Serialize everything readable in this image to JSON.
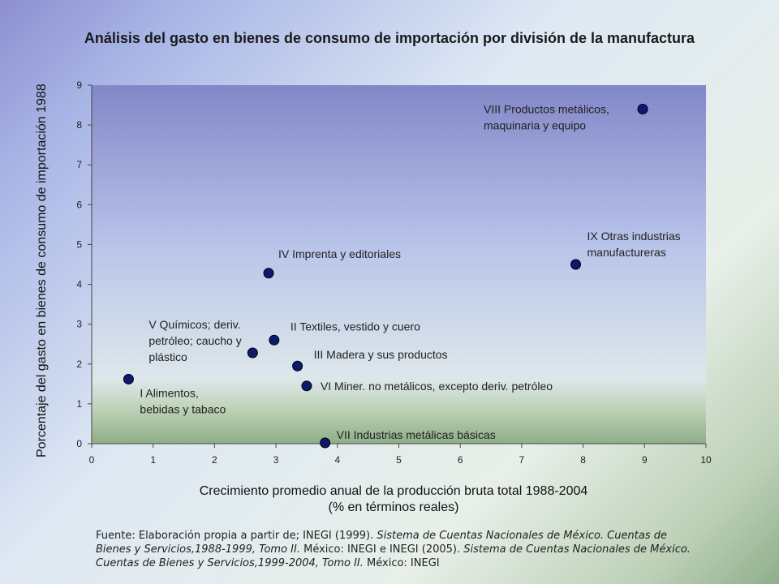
{
  "chart_data": {
    "type": "scatter",
    "title": "Análisis del gasto en bienes de consumo de importación por división de la manufactura",
    "xlabel_line1": "Crecimiento promedio anual de la producción bruta total 1988-2004",
    "xlabel_line2": "(% en términos reales)",
    "ylabel": "Porcentaje del gasto en bienes de consumo de importación 1988",
    "xlim": [
      0,
      10
    ],
    "ylim": [
      0,
      9
    ],
    "xticks": [
      "0",
      "1",
      "2",
      "3",
      "4",
      "5",
      "6",
      "7",
      "8",
      "9",
      "10"
    ],
    "yticks": [
      "0",
      "1",
      "2",
      "3",
      "4",
      "5",
      "6",
      "7",
      "8",
      "9"
    ],
    "grid": false,
    "legend": "none",
    "marker_color": "#0b1a6e",
    "points": [
      {
        "x": 0.6,
        "y": 1.62,
        "label": [
          "I Alimentos,",
          "bebidas y tabaco"
        ]
      },
      {
        "x": 2.97,
        "y": 2.6,
        "label": [
          "II Textiles, vestido y cuero"
        ]
      },
      {
        "x": 3.35,
        "y": 1.95,
        "label": [
          "III Madera y sus productos"
        ]
      },
      {
        "x": 2.88,
        "y": 4.28,
        "label": [
          "IV Imprenta y editoriales"
        ]
      },
      {
        "x": 2.62,
        "y": 2.28,
        "label": [
          "V Químicos; deriv.",
          "petróleo; caucho y",
          "plástico"
        ]
      },
      {
        "x": 3.5,
        "y": 1.45,
        "label": [
          "VI Miner. no metálicos, excepto deriv. petróleo"
        ]
      },
      {
        "x": 3.8,
        "y": 0.02,
        "label": [
          "VII Industrias metálicas básicas"
        ]
      },
      {
        "x": 8.97,
        "y": 8.4,
        "label": [
          "VIII Productos metálicos,",
          "maquinaria y equipo"
        ]
      },
      {
        "x": 7.88,
        "y": 4.5,
        "label": [
          "IX Otras industrias",
          "manufactureras"
        ]
      }
    ]
  },
  "source": {
    "intro": "Fuente: Elaboración propia a partir de; INEGI (1999). ",
    "title1": "Sistema de Cuentas Nacionales de México. Cuentas de Bienes y Servicios,1988-1999, Tomo II.",
    "mid": " México: INEGI e INEGI (2005). ",
    "title2": "Sistema de Cuentas Nacionales de México. Cuentas de Bienes y Servicios,1999-2004, Tomo II.",
    "outro": " México: INEGI"
  }
}
